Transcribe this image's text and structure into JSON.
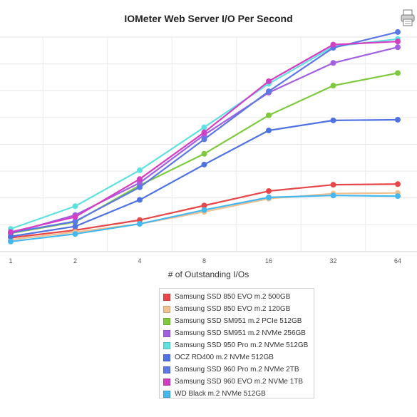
{
  "chart_data": {
    "type": "line",
    "title": "IOMeter Web Server I/O Per Second",
    "xlabel": "# of Outstanding I/Os",
    "ylabel": "",
    "categories": [
      "1",
      "2",
      "4",
      "8",
      "16",
      "32",
      "64"
    ],
    "ylim": [
      0,
      340
    ],
    "grid": true,
    "legend_position": "bottom",
    "series": [
      {
        "name": "Samsung SSD 850 EVO m.2 500GB",
        "color": "#e8474a",
        "values": [
          22,
          34,
          50,
          73,
          96,
          106,
          107
        ]
      },
      {
        "name": "Samsung SSD 850 EVO m.2 120GB",
        "color": "#f0c08e",
        "values": [
          19,
          31,
          44,
          63,
          84,
          92,
          93
        ]
      },
      {
        "name": "Samsung SSD SM951 m.2 PCIe 512GB",
        "color": "#7ec93e",
        "values": [
          29,
          47,
          105,
          155,
          216,
          263,
          283
        ]
      },
      {
        "name": "Samsung SSD SM951 m.2 NVMe 256GB",
        "color": "#a25fe2",
        "values": [
          29,
          58,
          109,
          185,
          252,
          299,
          324
        ]
      },
      {
        "name": "Samsung SSD 950 Pro m.2 NVMe 512GB",
        "color": "#5fe0df",
        "values": [
          36,
          72,
          129,
          197,
          266,
          325,
          337
        ]
      },
      {
        "name": "OCZ RD400 m.2 NVMe 512GB",
        "color": "#4f72e3",
        "values": [
          24,
          40,
          82,
          138,
          192,
          208,
          209
        ]
      },
      {
        "name": "Samsung SSD 960 Pro m.2 NVMe 2TB",
        "color": "#5c77e6",
        "values": [
          30,
          48,
          102,
          178,
          254,
          323,
          348
        ]
      },
      {
        "name": "Samsung SSD 960 EVO m.2 NVMe 1TB",
        "color": "#d43ec3",
        "values": [
          31,
          55,
          115,
          189,
          270,
          328,
          333
        ]
      },
      {
        "name": "WD Black m.2 NVMe 512GB",
        "color": "#44b8ee",
        "values": [
          16,
          28,
          44,
          66,
          86,
          89,
          88
        ]
      }
    ]
  },
  "icons": {
    "corner": "printer-icon"
  }
}
